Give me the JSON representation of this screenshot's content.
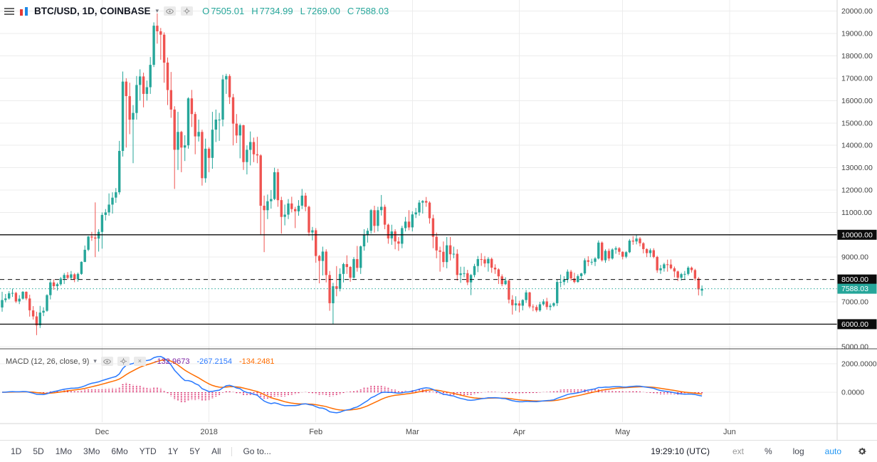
{
  "header": {
    "symbol": "BTC/USD, 1D, COINBASE",
    "ohlc": {
      "o_label": "O",
      "o_value": "7505.01",
      "h_label": "H",
      "h_value": "7734.99",
      "l_label": "L",
      "l_value": "7269.00",
      "c_label": "C",
      "c_value": "7588.03"
    }
  },
  "macd_header": {
    "label": "MACD (12, 26, close, 9)",
    "hist_value": "-132.9673",
    "macd_value": "-267.2154",
    "signal_value": "-134.2481"
  },
  "toolbar": {
    "ranges": [
      "1D",
      "5D",
      "1Mo",
      "3Mo",
      "6Mo",
      "YTD",
      "1Y",
      "5Y",
      "All"
    ],
    "goto": "Go to...",
    "clock": "19:29:10 (UTC)",
    "ext": "ext",
    "percent": "%",
    "log": "log",
    "auto": "auto"
  },
  "colors": {
    "candle_up": "#26a69a",
    "candle_down": "#ef5350",
    "ohlc_text": "#26a69a",
    "macd_line": "#2979ff",
    "signal_line": "#ff6d00",
    "histogram": "#d81b60",
    "hist_value_color": "#7b1fa2",
    "level_black": "#0c0c0c",
    "last_price": "#26a69a",
    "auto_button": "#2196f3"
  },
  "chart_data": {
    "type": "candlestick",
    "symbol": "BTC/USD",
    "interval": "1D",
    "exchange": "COINBASE",
    "start_date": "2017-11-02",
    "last_price": 7588.03,
    "price_axis": {
      "min": 5000,
      "max": 20000,
      "step": 1000,
      "format": "0.00"
    },
    "levels": [
      {
        "value": 10000,
        "style": "solid",
        "color": "#0c0c0c",
        "badge": "#0c0c0c"
      },
      {
        "value": 8000,
        "style": "dashed",
        "color": "#0c0c0c",
        "badge": "#0c0c0c"
      },
      {
        "value": 7588.03,
        "style": "dotted",
        "color": "#26a69a",
        "badge": "#26a69a",
        "role": "last-price"
      },
      {
        "value": 6000,
        "style": "solid",
        "color": "#0c0c0c",
        "badge": "#0c0c0c"
      }
    ],
    "time_axis": [
      {
        "label": "Dec",
        "day_index": 29
      },
      {
        "label": "2018",
        "day_index": 60
      },
      {
        "label": "Feb",
        "day_index": 91
      },
      {
        "label": "Mar",
        "day_index": 119
      },
      {
        "label": "Apr",
        "day_index": 150
      },
      {
        "label": "May",
        "day_index": 180
      },
      {
        "label": "Jun",
        "day_index": 211
      }
    ],
    "candles": [
      [
        6750,
        7450,
        6560,
        7080
      ],
      [
        7080,
        7350,
        6980,
        7150
      ],
      [
        7150,
        7480,
        7100,
        7380
      ],
      [
        7380,
        7590,
        7220,
        7400
      ],
      [
        7400,
        7450,
        6950,
        7020
      ],
      [
        7020,
        7300,
        6900,
        7140
      ],
      [
        7140,
        7480,
        7100,
        7450
      ],
      [
        7450,
        7470,
        7070,
        7150
      ],
      [
        7150,
        7320,
        6340,
        6620
      ],
      [
        6620,
        6810,
        6210,
        6350
      ],
      [
        6350,
        6560,
        5510,
        5950
      ],
      [
        5950,
        6820,
        5830,
        6520
      ],
      [
        6520,
        6760,
        6360,
        6600
      ],
      [
        6600,
        7340,
        6560,
        7300
      ],
      [
        7300,
        7970,
        7110,
        7870
      ],
      [
        7870,
        8000,
        7540,
        7700
      ],
      [
        7700,
        7860,
        7500,
        7790
      ],
      [
        7790,
        8110,
        7720,
        8040
      ],
      [
        8040,
        8290,
        7800,
        8200
      ],
      [
        8200,
        8330,
        8000,
        8070
      ],
      [
        8070,
        8380,
        8010,
        8230
      ],
      [
        8230,
        8290,
        7880,
        8010
      ],
      [
        8010,
        8310,
        7900,
        8250
      ],
      [
        8250,
        8810,
        8210,
        8790
      ],
      [
        8790,
        9520,
        8775,
        9330
      ],
      [
        9330,
        9950,
        9270,
        9920
      ],
      [
        9920,
        10130,
        9730,
        9880
      ],
      [
        9880,
        11450,
        9000,
        9830
      ],
      [
        9830,
        10250,
        9250,
        10130
      ],
      [
        10130,
        11000,
        9380,
        10890
      ],
      [
        10890,
        11150,
        10640,
        11000
      ],
      [
        11000,
        11850,
        10850,
        11350
      ],
      [
        11350,
        11900,
        10950,
        11660
      ],
      [
        11660,
        12090,
        11430,
        11900
      ],
      [
        11900,
        14200,
        11800,
        13750
      ],
      [
        13750,
        17300,
        13500,
        16850
      ],
      [
        16850,
        17000,
        13900,
        16200
      ],
      [
        16200,
        16800,
        14500,
        15150
      ],
      [
        15150,
        15800,
        13200,
        15450
      ],
      [
        15450,
        17100,
        15150,
        16700
      ],
      [
        16700,
        17400,
        16000,
        17080
      ],
      [
        17080,
        17250,
        15700,
        16300
      ],
      [
        16300,
        16900,
        16000,
        16600
      ],
      [
        16600,
        17950,
        16300,
        17600
      ],
      [
        17600,
        19500,
        17500,
        19350
      ],
      [
        19350,
        19900,
        18550,
        19100
      ],
      [
        19100,
        19250,
        17830,
        18950
      ],
      [
        18950,
        19050,
        16800,
        17700
      ],
      [
        17700,
        17930,
        15800,
        16470
      ],
      [
        16470,
        17280,
        15230,
        15600
      ],
      [
        15600,
        15750,
        12050,
        13800
      ],
      [
        13800,
        15500,
        12900,
        14600
      ],
      [
        14600,
        14650,
        12800,
        13900
      ],
      [
        13900,
        14450,
        13300,
        14000
      ],
      [
        14000,
        16150,
        13850,
        16100
      ],
      [
        16100,
        16480,
        14820,
        15400
      ],
      [
        15400,
        15500,
        13600,
        14400
      ],
      [
        14400,
        15150,
        14170,
        14600
      ],
      [
        14600,
        14700,
        12200,
        12530
      ],
      [
        12530,
        14300,
        12330,
        13850
      ],
      [
        13850,
        13920,
        12800,
        13440
      ],
      [
        13440,
        15500,
        12950,
        14700
      ],
      [
        14700,
        15600,
        14150,
        15150
      ],
      [
        15150,
        15450,
        14200,
        15150
      ],
      [
        15150,
        17150,
        14850,
        16950
      ],
      [
        16950,
        17200,
        16300,
        17100
      ],
      [
        17100,
        17180,
        15850,
        16150
      ],
      [
        16150,
        16300,
        14000,
        14970
      ],
      [
        14970,
        15400,
        14100,
        14440
      ],
      [
        14440,
        14970,
        13420,
        14900
      ],
      [
        14900,
        14920,
        12900,
        13250
      ],
      [
        13250,
        14000,
        12700,
        13800
      ],
      [
        13800,
        14620,
        13100,
        14150
      ],
      [
        14150,
        14350,
        13250,
        13600
      ],
      [
        13600,
        14380,
        13200,
        13550
      ],
      [
        13550,
        13600,
        10000,
        11300
      ],
      [
        11300,
        11750,
        9222,
        11100
      ],
      [
        11100,
        11800,
        10700,
        11500
      ],
      [
        11500,
        12000,
        11170,
        11600
      ],
      [
        11600,
        13000,
        11550,
        12800
      ],
      [
        12800,
        12950,
        11250,
        11550
      ],
      [
        11550,
        11700,
        10050,
        10800
      ],
      [
        10800,
        11350,
        10420,
        10900
      ],
      [
        10900,
        11600,
        10700,
        11400
      ],
      [
        11400,
        11700,
        11000,
        11150
      ],
      [
        11150,
        11250,
        10300,
        11050
      ],
      [
        11050,
        11550,
        10850,
        11300
      ],
      [
        11300,
        12050,
        11150,
        11750
      ],
      [
        11750,
        11880,
        11050,
        11250
      ],
      [
        11250,
        11300,
        9950,
        10100
      ],
      [
        10100,
        10350,
        9750,
        10200
      ],
      [
        10200,
        10300,
        8750,
        9050
      ],
      [
        9050,
        9100,
        7830,
        8830
      ],
      [
        8830,
        9470,
        8180,
        9250
      ],
      [
        9250,
        9350,
        7870,
        8200
      ],
      [
        8200,
        8380,
        6600,
        6940
      ],
      [
        6940,
        7850,
        6000,
        7700
      ],
      [
        7700,
        8600,
        7250,
        7580
      ],
      [
        7580,
        8500,
        7470,
        8250
      ],
      [
        8250,
        8750,
        7870,
        8690
      ],
      [
        8690,
        9080,
        8250,
        8560
      ],
      [
        8560,
        8600,
        7900,
        8080
      ],
      [
        8080,
        9000,
        8040,
        8910
      ],
      [
        8910,
        9500,
        8350,
        8520
      ],
      [
        8520,
        9520,
        8250,
        9480
      ],
      [
        9480,
        10250,
        9290,
        10000
      ],
      [
        10000,
        10300,
        9650,
        10180
      ],
      [
        10180,
        11150,
        10050,
        11100
      ],
      [
        11100,
        11300,
        10100,
        10400
      ],
      [
        10400,
        11250,
        10150,
        11100
      ],
      [
        11100,
        11780,
        10860,
        11250
      ],
      [
        11250,
        11350,
        10250,
        10450
      ],
      [
        10450,
        10500,
        9600,
        9840
      ],
      [
        9840,
        10450,
        9550,
        10150
      ],
      [
        10150,
        10250,
        9350,
        9700
      ],
      [
        9700,
        9900,
        9280,
        9600
      ],
      [
        9600,
        10400,
        9400,
        10300
      ],
      [
        10300,
        10800,
        10150,
        10590
      ],
      [
        10590,
        11100,
        10200,
        10330
      ],
      [
        10330,
        11050,
        10150,
        10910
      ],
      [
        10910,
        11200,
        10750,
        11000
      ],
      [
        11000,
        11550,
        10850,
        11440
      ],
      [
        11440,
        11550,
        10950,
        11510
      ],
      [
        11510,
        11690,
        11250,
        11440
      ],
      [
        11440,
        11500,
        10500,
        10740
      ],
      [
        10740,
        10900,
        9400,
        9910
      ],
      [
        9910,
        10100,
        8950,
        9300
      ],
      [
        9300,
        9470,
        8350,
        9240
      ],
      [
        9240,
        9700,
        8550,
        8780
      ],
      [
        8780,
        9900,
        8500,
        9530
      ],
      [
        9530,
        9900,
        8850,
        9130
      ],
      [
        9130,
        9470,
        8950,
        9150
      ],
      [
        9150,
        9350,
        7950,
        8200
      ],
      [
        8200,
        8570,
        7850,
        8270
      ],
      [
        8270,
        8570,
        8100,
        8280
      ],
      [
        8280,
        8430,
        7750,
        7870
      ],
      [
        7870,
        8250,
        7300,
        8200
      ],
      [
        8200,
        8700,
        8100,
        8600
      ],
      [
        8600,
        9050,
        8330,
        8910
      ],
      [
        8910,
        9180,
        8610,
        8900
      ],
      [
        8900,
        9050,
        8550,
        8720
      ],
      [
        8720,
        9000,
        8350,
        8920
      ],
      [
        8920,
        8980,
        8300,
        8530
      ],
      [
        8530,
        8680,
        8250,
        8450
      ],
      [
        8450,
        8500,
        7800,
        8140
      ],
      [
        8140,
        8230,
        7700,
        7790
      ],
      [
        7790,
        8100,
        7750,
        7950
      ],
      [
        7950,
        8000,
        6930,
        7100
      ],
      [
        7100,
        7300,
        6430,
        6850
      ],
      [
        6850,
        7250,
        6600,
        6930
      ],
      [
        6930,
        7050,
        6530,
        6830
      ],
      [
        6830,
        7120,
        6620,
        7080
      ],
      [
        7080,
        7530,
        6950,
        7420
      ],
      [
        7420,
        7450,
        6710,
        6790
      ],
      [
        6790,
        6890,
        6580,
        6770
      ],
      [
        6770,
        6860,
        6540,
        6620
      ],
      [
        6620,
        7000,
        6560,
        6890
      ],
      [
        6890,
        7120,
        6830,
        7020
      ],
      [
        7020,
        7180,
        6650,
        6770
      ],
      [
        6770,
        6930,
        6620,
        6830
      ],
      [
        6830,
        6980,
        6770,
        6940
      ],
      [
        6940,
        8000,
        6810,
        7890
      ],
      [
        7890,
        8220,
        7650,
        7890
      ],
      [
        7890,
        8150,
        7750,
        8000
      ],
      [
        8000,
        8450,
        7850,
        8350
      ],
      [
        8350,
        8430,
        7950,
        8050
      ],
      [
        8050,
        8300,
        7830,
        7890
      ],
      [
        7890,
        8230,
        7850,
        8150
      ],
      [
        8150,
        8300,
        8000,
        8270
      ],
      [
        8270,
        8950,
        8200,
        8860
      ],
      [
        8860,
        9040,
        8600,
        8790
      ],
      [
        8790,
        8930,
        8650,
        8790
      ],
      [
        8790,
        9000,
        8600,
        8940
      ],
      [
        8940,
        9750,
        8900,
        9650
      ],
      [
        9650,
        9700,
        8800,
        8860
      ],
      [
        8860,
        9350,
        8750,
        9280
      ],
      [
        9280,
        9380,
        8830,
        8940
      ],
      [
        8940,
        9400,
        8890,
        9340
      ],
      [
        9340,
        9480,
        9150,
        9400
      ],
      [
        9400,
        9450,
        9100,
        9240
      ],
      [
        9240,
        9260,
        8900,
        9020
      ],
      [
        9020,
        9270,
        8950,
        9220
      ],
      [
        9220,
        9810,
        9180,
        9740
      ],
      [
        9740,
        9940,
        9550,
        9700
      ],
      [
        9700,
        9990,
        9570,
        9830
      ],
      [
        9830,
        9900,
        9480,
        9620
      ],
      [
        9620,
        9670,
        9170,
        9360
      ],
      [
        9360,
        9400,
        9000,
        9180
      ],
      [
        9180,
        9390,
        9000,
        9310
      ],
      [
        9310,
        9400,
        8950,
        9010
      ],
      [
        9010,
        9060,
        8300,
        8410
      ],
      [
        8410,
        8650,
        8250,
        8500
      ],
      [
        8500,
        8750,
        8350,
        8680
      ],
      [
        8680,
        8890,
        8350,
        8670
      ],
      [
        8670,
        8900,
        8450,
        8500
      ],
      [
        8500,
        8580,
        8100,
        8360
      ],
      [
        8360,
        8400,
        7930,
        8080
      ],
      [
        8080,
        8300,
        7950,
        8240
      ],
      [
        8240,
        8380,
        8000,
        8250
      ],
      [
        8250,
        8600,
        8180,
        8530
      ],
      [
        8530,
        8580,
        8310,
        8420
      ],
      [
        8420,
        8480,
        7950,
        8040
      ],
      [
        8040,
        8110,
        7290,
        7560
      ],
      [
        7505.01,
        7734.99,
        7269,
        7588.03
      ]
    ],
    "indicator": {
      "type": "MACD",
      "params": [
        12,
        26,
        "close",
        9
      ],
      "displayed_values": {
        "histogram": -132.9673,
        "macd": -267.2154,
        "signal": -134.2481
      },
      "axis_ticks": [
        {
          "value": 2000,
          "label": "2000.0000"
        },
        {
          "value": 0,
          "label": "0.0000"
        }
      ]
    }
  }
}
